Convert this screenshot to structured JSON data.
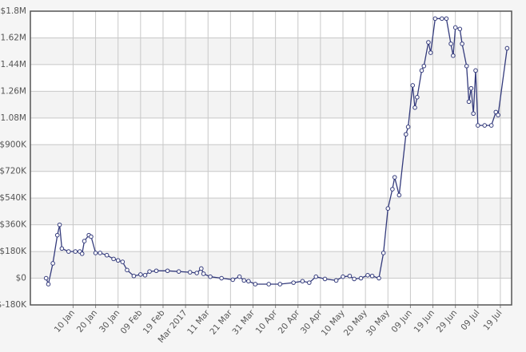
{
  "chart_data": {
    "type": "line",
    "x": [
      "2016-12-29",
      "2016-12-30",
      "2017-01-01",
      "2017-01-03",
      "2017-01-04",
      "2017-01-05",
      "2017-01-08",
      "2017-01-11",
      "2017-01-13",
      "2017-01-14",
      "2017-01-15",
      "2017-01-17",
      "2017-01-18",
      "2017-01-20",
      "2017-01-22",
      "2017-01-25",
      "2017-01-28",
      "2017-01-30",
      "2017-02-01",
      "2017-02-03",
      "2017-02-06",
      "2017-02-09",
      "2017-02-11",
      "2017-02-13",
      "2017-02-16",
      "2017-02-21",
      "2017-02-26",
      "2017-03-03",
      "2017-03-06",
      "2017-03-08",
      "2017-03-09",
      "2017-03-12",
      "2017-03-17",
      "2017-03-22",
      "2017-03-25",
      "2017-03-27",
      "2017-03-29",
      "2017-04-01",
      "2017-04-07",
      "2017-04-12",
      "2017-04-18",
      "2017-04-22",
      "2017-04-25",
      "2017-04-28",
      "2017-05-02",
      "2017-05-07",
      "2017-05-10",
      "2017-05-13",
      "2017-05-15",
      "2017-05-18",
      "2017-05-21",
      "2017-05-23",
      "2017-05-26",
      "2017-05-28",
      "2017-05-30",
      "2017-06-01",
      "2017-06-02",
      "2017-06-04",
      "2017-06-07",
      "2017-06-08",
      "2017-06-10",
      "2017-06-11",
      "2017-06-12",
      "2017-06-14",
      "2017-06-15",
      "2017-06-17",
      "2017-06-18",
      "2017-06-20",
      "2017-06-23",
      "2017-06-25",
      "2017-06-27",
      "2017-06-28",
      "2017-06-29",
      "2017-07-01",
      "2017-07-02",
      "2017-07-04",
      "2017-07-05",
      "2017-07-06",
      "2017-07-07",
      "2017-07-08",
      "2017-07-09",
      "2017-07-12",
      "2017-07-15",
      "2017-07-17",
      "2017-07-18",
      "2017-07-22"
    ],
    "series": [
      {
        "color": "#343b7c",
        "values": [
          0,
          -40000,
          100000,
          290000,
          360000,
          200000,
          180000,
          180000,
          180000,
          165000,
          250000,
          290000,
          280000,
          170000,
          170000,
          155000,
          130000,
          120000,
          110000,
          55000,
          15000,
          25000,
          20000,
          45000,
          50000,
          50000,
          45000,
          40000,
          35000,
          65000,
          30000,
          10000,
          0,
          -10000,
          10000,
          -15000,
          -20000,
          -40000,
          -40000,
          -40000,
          -30000,
          -20000,
          -30000,
          10000,
          -5000,
          -15000,
          10000,
          15000,
          -5000,
          0,
          20000,
          15000,
          0,
          170000,
          470000,
          600000,
          680000,
          560000,
          970000,
          1020000,
          1300000,
          1150000,
          1220000,
          1400000,
          1430000,
          1590000,
          1520000,
          1750000,
          1750000,
          1750000,
          1580000,
          1500000,
          1690000,
          1680000,
          1580000,
          1430000,
          1190000,
          1280000,
          1110000,
          1400000,
          1030000,
          1030000,
          1030000,
          1120000,
          1100000,
          1550000
        ]
      }
    ],
    "xlim": [
      "2016-12-22",
      "2017-07-24"
    ],
    "xticks": [
      {
        "value": "2017-01-10",
        "label": "10 Jan"
      },
      {
        "value": "2017-01-20",
        "label": "20 Jan"
      },
      {
        "value": "2017-01-30",
        "label": "30 Jan"
      },
      {
        "value": "2017-02-09",
        "label": "09 Feb"
      },
      {
        "value": "2017-02-19",
        "label": "19 Feb"
      },
      {
        "value": "2017-03-01",
        "label": "Mar 2017"
      },
      {
        "value": "2017-03-11",
        "label": "11 Mar"
      },
      {
        "value": "2017-03-21",
        "label": "21 Mar"
      },
      {
        "value": "2017-03-31",
        "label": "31 Mar"
      },
      {
        "value": "2017-04-10",
        "label": "10 Apr"
      },
      {
        "value": "2017-04-20",
        "label": "20 Apr"
      },
      {
        "value": "2017-04-30",
        "label": "30 Apr"
      },
      {
        "value": "2017-05-10",
        "label": "10 May"
      },
      {
        "value": "2017-05-20",
        "label": "20 May"
      },
      {
        "value": "2017-05-30",
        "label": "30 May"
      },
      {
        "value": "2017-06-09",
        "label": "09 Jun"
      },
      {
        "value": "2017-06-19",
        "label": "19 Jun"
      },
      {
        "value": "2017-06-29",
        "label": "29 Jun"
      },
      {
        "value": "2017-07-09",
        "label": "09 Jul"
      },
      {
        "value": "2017-07-19",
        "label": "19 Jul"
      }
    ],
    "ylim": [
      -180000,
      1800000
    ],
    "yticks": [
      {
        "value": -180000,
        "label": "$-180K"
      },
      {
        "value": 0,
        "label": "$0"
      },
      {
        "value": 180000,
        "label": "$180K"
      },
      {
        "value": 360000,
        "label": "$360K"
      },
      {
        "value": 540000,
        "label": "$540K"
      },
      {
        "value": 720000,
        "label": "$720K"
      },
      {
        "value": 900000,
        "label": "$900K"
      },
      {
        "value": 1080000,
        "label": "$1.08M"
      },
      {
        "value": 1260000,
        "label": "$1.26M"
      },
      {
        "value": 1440000,
        "label": "$1.44M"
      },
      {
        "value": 1620000,
        "label": "$1.62M"
      },
      {
        "value": 1800000,
        "label": "$1.8M"
      }
    ],
    "grid": true
  }
}
